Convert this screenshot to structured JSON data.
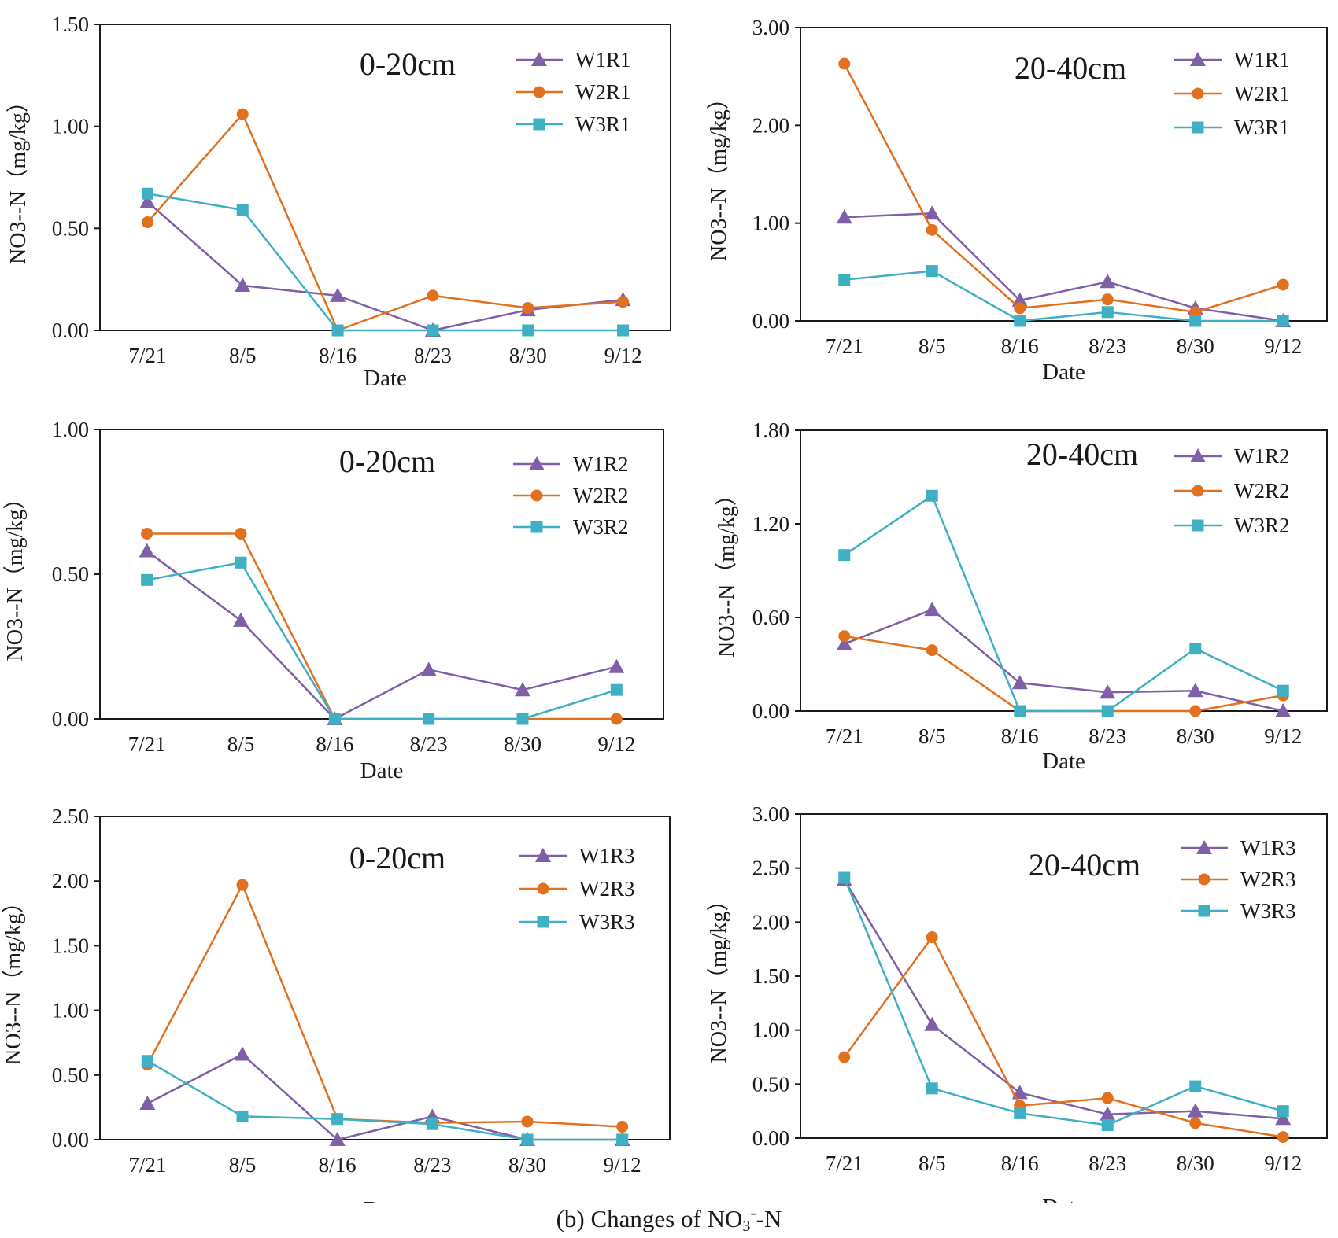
{
  "caption": {
    "prefix": "(b) Changes of NO",
    "sub": "3",
    "sup": "-",
    "suffix": "-N"
  },
  "colors": {
    "W1": "#7e5fa8",
    "W2": "#e2711f",
    "W3": "#3fb0c4"
  },
  "markers": {
    "W1": "triangle-icon",
    "W2": "circle-icon",
    "W3": "square-icon"
  },
  "chart_data": [
    {
      "type": "line",
      "title": "0-20cm",
      "xlabel": "Date",
      "ylabel": "NO3--N（mg/kg）",
      "categories": [
        "7/21",
        "8/5",
        "8/16",
        "8/23",
        "8/30",
        "9/12"
      ],
      "yticks": [
        "0.00",
        "0.50",
        "1.00",
        "1.50"
      ],
      "ylim": [
        0,
        1.5
      ],
      "legend": "top-right",
      "series": [
        {
          "name": "W1R1",
          "key": "W1",
          "values": [
            0.63,
            0.22,
            0.17,
            0.0,
            0.1,
            0.15
          ]
        },
        {
          "name": "W2R1",
          "key": "W2",
          "values": [
            0.53,
            1.06,
            0.0,
            0.17,
            0.11,
            0.14
          ]
        },
        {
          "name": "W3R1",
          "key": "W3",
          "values": [
            0.67,
            0.59,
            0.0,
            0.0,
            0.0,
            0.0
          ]
        }
      ]
    },
    {
      "type": "line",
      "title": "20-40cm",
      "xlabel": "Date",
      "ylabel": "NO3--N（mg/kg）",
      "categories": [
        "7/21",
        "8/5",
        "8/16",
        "8/23",
        "8/30",
        "9/12"
      ],
      "yticks": [
        "0.00",
        "1.00",
        "2.00",
        "3.00"
      ],
      "ylim": [
        0,
        3.0
      ],
      "legend": "top-right",
      "series": [
        {
          "name": "W1R1",
          "key": "W1",
          "values": [
            1.06,
            1.1,
            0.21,
            0.4,
            0.13,
            0.0
          ]
        },
        {
          "name": "W2R1",
          "key": "W2",
          "values": [
            2.63,
            0.93,
            0.13,
            0.22,
            0.09,
            0.37
          ]
        },
        {
          "name": "W3R1",
          "key": "W3",
          "values": [
            0.42,
            0.51,
            0.0,
            0.09,
            0.0,
            0.0
          ]
        }
      ]
    },
    {
      "type": "line",
      "title": "0-20cm",
      "xlabel": "Date",
      "ylabel": "NO3--N（mg/kg）",
      "categories": [
        "7/21",
        "8/5",
        "8/16",
        "8/23",
        "8/30",
        "9/12"
      ],
      "yticks": [
        "0.00",
        "0.50",
        "1.00"
      ],
      "ylim": [
        0,
        1.0
      ],
      "legend": "top-right",
      "series": [
        {
          "name": "W1R2",
          "key": "W1",
          "values": [
            0.58,
            0.34,
            0.0,
            0.17,
            0.1,
            0.18
          ]
        },
        {
          "name": "W2R2",
          "key": "W2",
          "values": [
            0.64,
            0.64,
            0.0,
            0.0,
            0.0,
            0.0
          ]
        },
        {
          "name": "W3R2",
          "key": "W3",
          "values": [
            0.48,
            0.54,
            0.0,
            0.0,
            0.0,
            0.1
          ]
        }
      ]
    },
    {
      "type": "line",
      "title": "20-40cm",
      "xlabel": "Date",
      "ylabel": "NO3--N（mg/kg）",
      "categories": [
        "7/21",
        "8/5",
        "8/16",
        "8/23",
        "8/30",
        "9/12"
      ],
      "yticks": [
        "0.00",
        "0.60",
        "1.20",
        "1.80"
      ],
      "ylim": [
        0,
        1.8
      ],
      "legend": "top-right",
      "series": [
        {
          "name": "W1R2",
          "key": "W1",
          "values": [
            0.43,
            0.65,
            0.18,
            0.12,
            0.13,
            0.0
          ]
        },
        {
          "name": "W2R2",
          "key": "W2",
          "values": [
            0.48,
            0.39,
            0.0,
            0.0,
            0.0,
            0.1
          ]
        },
        {
          "name": "W3R2",
          "key": "W3",
          "values": [
            1.0,
            1.38,
            0.0,
            0.0,
            0.4,
            0.13
          ]
        }
      ]
    },
    {
      "type": "line",
      "title": "0-20cm",
      "xlabel": "Date",
      "ylabel": "NO3--N（mg/kg）",
      "categories": [
        "7/21",
        "8/5",
        "8/16",
        "8/23",
        "8/30",
        "9/12"
      ],
      "yticks": [
        "0.00",
        "0.50",
        "1.00",
        "1.50",
        "2.00",
        "2.50"
      ],
      "ylim": [
        0,
        2.5
      ],
      "legend": "top-right",
      "series": [
        {
          "name": "W1R3",
          "key": "W1",
          "values": [
            0.28,
            0.66,
            0.0,
            0.18,
            0.0,
            0.0
          ]
        },
        {
          "name": "W2R3",
          "key": "W2",
          "values": [
            0.58,
            1.97,
            0.16,
            0.13,
            0.14,
            0.1
          ]
        },
        {
          "name": "W3R3",
          "key": "W3",
          "values": [
            0.61,
            0.18,
            0.16,
            0.12,
            0.0,
            0.0
          ]
        }
      ]
    },
    {
      "type": "line",
      "title": "20-40cm",
      "xlabel": "Date",
      "ylabel": "NO3--N（mg/kg）",
      "categories": [
        "7/21",
        "8/5",
        "8/16",
        "8/23",
        "8/30",
        "9/12"
      ],
      "yticks": [
        "0.00",
        "0.50",
        "1.00",
        "1.50",
        "2.00",
        "2.50",
        "3.00"
      ],
      "ylim": [
        0,
        3.0
      ],
      "legend": "top-right",
      "series": [
        {
          "name": "W1R3",
          "key": "W1",
          "values": [
            2.39,
            1.05,
            0.42,
            0.22,
            0.25,
            0.18
          ]
        },
        {
          "name": "W2R3",
          "key": "W2",
          "values": [
            0.75,
            1.86,
            0.3,
            0.37,
            0.14,
            0.01
          ]
        },
        {
          "name": "W3R3",
          "key": "W3",
          "values": [
            2.41,
            0.46,
            0.23,
            0.12,
            0.48,
            0.25
          ]
        }
      ]
    }
  ]
}
